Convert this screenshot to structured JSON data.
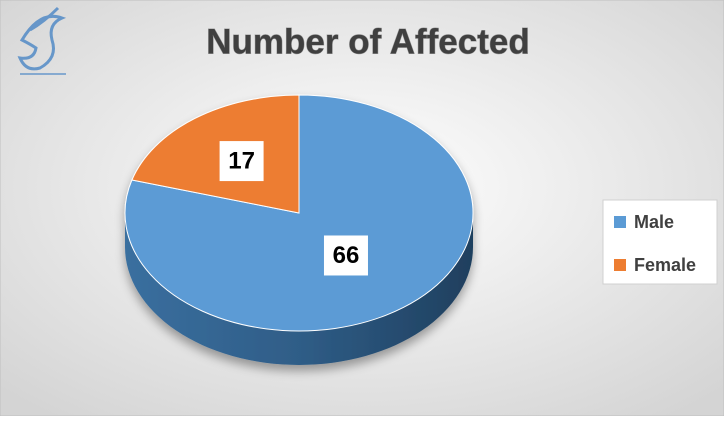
{
  "chart_data": {
    "type": "pie",
    "title": "Number of Affected",
    "categories": [
      "Male",
      "Female"
    ],
    "values": [
      66,
      17
    ],
    "colors": [
      "#5b9bd5",
      "#ed7d31"
    ],
    "legend": "right"
  }
}
